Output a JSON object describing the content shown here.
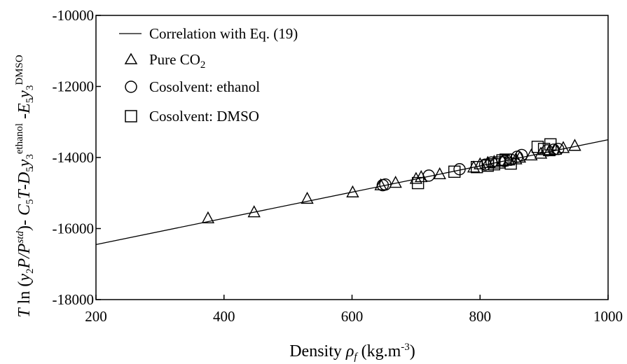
{
  "chart_data": {
    "type": "scatter",
    "xlabel": "Density ρf (kg.m-3)",
    "ylabel": "T ln (y2P/Pstd)- C5T-D5y3ethanol -E5y3DMSO",
    "xlim": [
      200,
      1000
    ],
    "ylim": [
      -18000,
      -10000
    ],
    "x_ticks": [
      "200",
      "400",
      "600",
      "800",
      "1000"
    ],
    "y_ticks": [
      "-18000",
      "-16000",
      "-14000",
      "-12000",
      "-10000"
    ],
    "legend_position": "top-left",
    "legend": {
      "line": "Correlation with Eq. (19)",
      "pure": "Pure CO2",
      "ethanol": "Cosolvent: ethanol",
      "dmso": "Cosolvent: DMSO"
    },
    "series": [
      {
        "name": "Correlation with Eq. (19)",
        "kind": "line",
        "x": [
          200,
          1000
        ],
        "y": [
          -16450,
          -13500
        ]
      },
      {
        "name": "Pure CO2",
        "kind": "triangle",
        "x": [
          375,
          447,
          530,
          601,
          645,
          668,
          700,
          708,
          737,
          790,
          800,
          812,
          822,
          835,
          845,
          856,
          862,
          880,
          895,
          908,
          918,
          930,
          948
        ],
        "y": [
          -15720,
          -15550,
          -15170,
          -14990,
          -14790,
          -14720,
          -14610,
          -14560,
          -14480,
          -14290,
          -14200,
          -14160,
          -14130,
          -14110,
          -14090,
          -14060,
          -14010,
          -13950,
          -13900,
          -13830,
          -13790,
          -13740,
          -13680
        ]
      },
      {
        "name": "Cosolvent: ethanol",
        "kind": "circle",
        "x": [
          648,
          652,
          720,
          768,
          808,
          818,
          838,
          848,
          858,
          865,
          905,
          915,
          922
        ],
        "y": [
          -14780,
          -14760,
          -14510,
          -14330,
          -14200,
          -14140,
          -14100,
          -14060,
          -13980,
          -13930,
          -13800,
          -13780,
          -13760
        ]
      },
      {
        "name": "Cosolvent: DMSO",
        "kind": "square",
        "x": [
          703,
          760,
          795,
          812,
          822,
          830,
          835,
          840,
          848,
          890,
          900,
          910
        ],
        "y": [
          -14720,
          -14400,
          -14270,
          -14230,
          -14190,
          -14140,
          -14080,
          -14060,
          -14170,
          -13700,
          -13760,
          -13630
        ]
      }
    ]
  }
}
